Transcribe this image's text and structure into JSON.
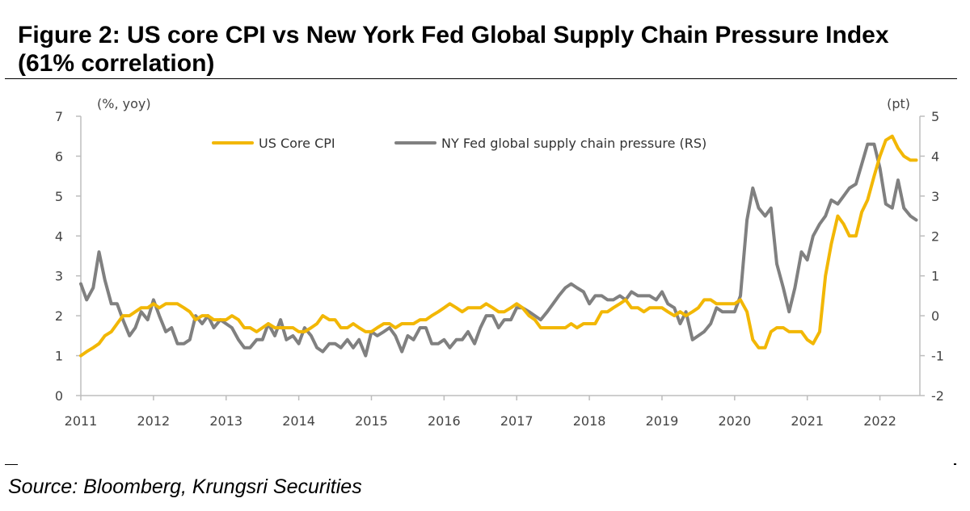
{
  "figure": {
    "title": "Figure 2: US core CPI vs New York Fed Global Supply Chain Pressure Index (61% correlation)",
    "source": "Source: Bloomberg, Krungsri Securities"
  },
  "chart_data": {
    "type": "line",
    "title": "Figure 2: US core CPI vs New York Fed Global Supply Chain Pressure Index (61% correlation)",
    "y_left_unit": "(%, yoy)",
    "y_right_unit": "(pt)",
    "y_left_ticks": [
      0,
      1,
      2,
      3,
      4,
      5,
      6,
      7
    ],
    "y_right_ticks": [
      -2,
      -1,
      0,
      1,
      2,
      3,
      4,
      5
    ],
    "ylim_left": [
      0,
      7
    ],
    "ylim_right": [
      -2,
      5
    ],
    "x_ticks": [
      "2011",
      "2012",
      "2013",
      "2014",
      "2015",
      "2016",
      "2017",
      "2018",
      "2019",
      "2020",
      "2021",
      "2022"
    ],
    "xlim": [
      2011.0,
      2022.55
    ],
    "grid": false,
    "legend_position": "top-center",
    "series": [
      {
        "name": "US Core CPI",
        "axis": "left",
        "color": "#F2B705",
        "points": [
          [
            2011.0,
            1.0
          ],
          [
            2011.08,
            1.1
          ],
          [
            2011.17,
            1.2
          ],
          [
            2011.25,
            1.3
          ],
          [
            2011.33,
            1.5
          ],
          [
            2011.42,
            1.6
          ],
          [
            2011.5,
            1.8
          ],
          [
            2011.58,
            2.0
          ],
          [
            2011.67,
            2.0
          ],
          [
            2011.75,
            2.1
          ],
          [
            2011.83,
            2.2
          ],
          [
            2011.92,
            2.2
          ],
          [
            2012.0,
            2.3
          ],
          [
            2012.08,
            2.2
          ],
          [
            2012.17,
            2.3
          ],
          [
            2012.25,
            2.3
          ],
          [
            2012.33,
            2.3
          ],
          [
            2012.42,
            2.2
          ],
          [
            2012.5,
            2.1
          ],
          [
            2012.58,
            1.9
          ],
          [
            2012.67,
            2.0
          ],
          [
            2012.75,
            2.0
          ],
          [
            2012.83,
            1.9
          ],
          [
            2012.92,
            1.9
          ],
          [
            2013.0,
            1.9
          ],
          [
            2013.08,
            2.0
          ],
          [
            2013.17,
            1.9
          ],
          [
            2013.25,
            1.7
          ],
          [
            2013.33,
            1.7
          ],
          [
            2013.42,
            1.6
          ],
          [
            2013.5,
            1.7
          ],
          [
            2013.58,
            1.8
          ],
          [
            2013.67,
            1.7
          ],
          [
            2013.75,
            1.7
          ],
          [
            2013.83,
            1.7
          ],
          [
            2013.92,
            1.7
          ],
          [
            2014.0,
            1.6
          ],
          [
            2014.08,
            1.6
          ],
          [
            2014.17,
            1.7
          ],
          [
            2014.25,
            1.8
          ],
          [
            2014.33,
            2.0
          ],
          [
            2014.42,
            1.9
          ],
          [
            2014.5,
            1.9
          ],
          [
            2014.58,
            1.7
          ],
          [
            2014.67,
            1.7
          ],
          [
            2014.75,
            1.8
          ],
          [
            2014.83,
            1.7
          ],
          [
            2014.92,
            1.6
          ],
          [
            2015.0,
            1.6
          ],
          [
            2015.08,
            1.7
          ],
          [
            2015.17,
            1.8
          ],
          [
            2015.25,
            1.8
          ],
          [
            2015.33,
            1.7
          ],
          [
            2015.42,
            1.8
          ],
          [
            2015.5,
            1.8
          ],
          [
            2015.58,
            1.8
          ],
          [
            2015.67,
            1.9
          ],
          [
            2015.75,
            1.9
          ],
          [
            2015.83,
            2.0
          ],
          [
            2015.92,
            2.1
          ],
          [
            2016.0,
            2.2
          ],
          [
            2016.08,
            2.3
          ],
          [
            2016.17,
            2.2
          ],
          [
            2016.25,
            2.1
          ],
          [
            2016.33,
            2.2
          ],
          [
            2016.42,
            2.2
          ],
          [
            2016.5,
            2.2
          ],
          [
            2016.58,
            2.3
          ],
          [
            2016.67,
            2.2
          ],
          [
            2016.75,
            2.1
          ],
          [
            2016.83,
            2.1
          ],
          [
            2016.92,
            2.2
          ],
          [
            2017.0,
            2.3
          ],
          [
            2017.08,
            2.2
          ],
          [
            2017.17,
            2.0
          ],
          [
            2017.25,
            1.9
          ],
          [
            2017.33,
            1.7
          ],
          [
            2017.42,
            1.7
          ],
          [
            2017.5,
            1.7
          ],
          [
            2017.58,
            1.7
          ],
          [
            2017.67,
            1.7
          ],
          [
            2017.75,
            1.8
          ],
          [
            2017.83,
            1.7
          ],
          [
            2017.92,
            1.8
          ],
          [
            2018.0,
            1.8
          ],
          [
            2018.08,
            1.8
          ],
          [
            2018.17,
            2.1
          ],
          [
            2018.25,
            2.1
          ],
          [
            2018.33,
            2.2
          ],
          [
            2018.42,
            2.3
          ],
          [
            2018.5,
            2.4
          ],
          [
            2018.58,
            2.2
          ],
          [
            2018.67,
            2.2
          ],
          [
            2018.75,
            2.1
          ],
          [
            2018.83,
            2.2
          ],
          [
            2018.92,
            2.2
          ],
          [
            2019.0,
            2.2
          ],
          [
            2019.08,
            2.1
          ],
          [
            2019.17,
            2.0
          ],
          [
            2019.25,
            2.1
          ],
          [
            2019.33,
            2.0
          ],
          [
            2019.42,
            2.1
          ],
          [
            2019.5,
            2.2
          ],
          [
            2019.58,
            2.4
          ],
          [
            2019.67,
            2.4
          ],
          [
            2019.75,
            2.3
          ],
          [
            2019.83,
            2.3
          ],
          [
            2019.92,
            2.3
          ],
          [
            2020.0,
            2.3
          ],
          [
            2020.08,
            2.4
          ],
          [
            2020.17,
            2.1
          ],
          [
            2020.25,
            1.4
          ],
          [
            2020.33,
            1.2
          ],
          [
            2020.42,
            1.2
          ],
          [
            2020.5,
            1.6
          ],
          [
            2020.58,
            1.7
          ],
          [
            2020.67,
            1.7
          ],
          [
            2020.75,
            1.6
          ],
          [
            2020.83,
            1.6
          ],
          [
            2020.92,
            1.6
          ],
          [
            2021.0,
            1.4
          ],
          [
            2021.08,
            1.3
          ],
          [
            2021.17,
            1.6
          ],
          [
            2021.25,
            3.0
          ],
          [
            2021.33,
            3.8
          ],
          [
            2021.42,
            4.5
          ],
          [
            2021.5,
            4.3
          ],
          [
            2021.58,
            4.0
          ],
          [
            2021.67,
            4.0
          ],
          [
            2021.75,
            4.6
          ],
          [
            2021.83,
            4.9
          ],
          [
            2021.92,
            5.5
          ],
          [
            2022.0,
            6.0
          ],
          [
            2022.08,
            6.4
          ],
          [
            2022.17,
            6.5
          ],
          [
            2022.25,
            6.2
          ],
          [
            2022.33,
            6.0
          ],
          [
            2022.42,
            5.9
          ],
          [
            2022.5,
            5.9
          ]
        ]
      },
      {
        "name": "NY Fed global supply chain pressure (RS)",
        "axis": "right",
        "color": "#808080",
        "points": [
          [
            2011.0,
            0.8
          ],
          [
            2011.08,
            0.4
          ],
          [
            2011.17,
            0.7
          ],
          [
            2011.25,
            1.6
          ],
          [
            2011.33,
            0.9
          ],
          [
            2011.42,
            0.3
          ],
          [
            2011.5,
            0.3
          ],
          [
            2011.58,
            -0.1
          ],
          [
            2011.67,
            -0.5
          ],
          [
            2011.75,
            -0.3
          ],
          [
            2011.83,
            0.1
          ],
          [
            2011.92,
            -0.1
          ],
          [
            2012.0,
            0.4
          ],
          [
            2012.08,
            0.0
          ],
          [
            2012.17,
            -0.4
          ],
          [
            2012.25,
            -0.3
          ],
          [
            2012.33,
            -0.7
          ],
          [
            2012.42,
            -0.7
          ],
          [
            2012.5,
            -0.6
          ],
          [
            2012.58,
            0.0
          ],
          [
            2012.67,
            -0.2
          ],
          [
            2012.75,
            0.0
          ],
          [
            2012.83,
            -0.3
          ],
          [
            2012.92,
            -0.1
          ],
          [
            2013.0,
            -0.2
          ],
          [
            2013.08,
            -0.3
          ],
          [
            2013.17,
            -0.6
          ],
          [
            2013.25,
            -0.8
          ],
          [
            2013.33,
            -0.8
          ],
          [
            2013.42,
            -0.6
          ],
          [
            2013.5,
            -0.6
          ],
          [
            2013.58,
            -0.2
          ],
          [
            2013.67,
            -0.5
          ],
          [
            2013.75,
            -0.1
          ],
          [
            2013.83,
            -0.6
          ],
          [
            2013.92,
            -0.5
          ],
          [
            2014.0,
            -0.7
          ],
          [
            2014.08,
            -0.3
          ],
          [
            2014.17,
            -0.5
          ],
          [
            2014.25,
            -0.8
          ],
          [
            2014.33,
            -0.9
          ],
          [
            2014.42,
            -0.7
          ],
          [
            2014.5,
            -0.7
          ],
          [
            2014.58,
            -0.8
          ],
          [
            2014.67,
            -0.6
          ],
          [
            2014.75,
            -0.8
          ],
          [
            2014.83,
            -0.6
          ],
          [
            2014.92,
            -1.0
          ],
          [
            2015.0,
            -0.4
          ],
          [
            2015.08,
            -0.5
          ],
          [
            2015.17,
            -0.4
          ],
          [
            2015.25,
            -0.3
          ],
          [
            2015.33,
            -0.5
          ],
          [
            2015.42,
            -0.9
          ],
          [
            2015.5,
            -0.5
          ],
          [
            2015.58,
            -0.6
          ],
          [
            2015.67,
            -0.3
          ],
          [
            2015.75,
            -0.3
          ],
          [
            2015.83,
            -0.7
          ],
          [
            2015.92,
            -0.7
          ],
          [
            2016.0,
            -0.6
          ],
          [
            2016.08,
            -0.8
          ],
          [
            2016.17,
            -0.6
          ],
          [
            2016.25,
            -0.6
          ],
          [
            2016.33,
            -0.4
          ],
          [
            2016.42,
            -0.7
          ],
          [
            2016.5,
            -0.3
          ],
          [
            2016.58,
            0.0
          ],
          [
            2016.67,
            0.0
          ],
          [
            2016.75,
            -0.3
          ],
          [
            2016.83,
            -0.1
          ],
          [
            2016.92,
            -0.1
          ],
          [
            2017.0,
            0.2
          ],
          [
            2017.08,
            0.2
          ],
          [
            2017.17,
            0.1
          ],
          [
            2017.25,
            0.0
          ],
          [
            2017.33,
            -0.1
          ],
          [
            2017.42,
            0.1
          ],
          [
            2017.5,
            0.3
          ],
          [
            2017.58,
            0.5
          ],
          [
            2017.67,
            0.7
          ],
          [
            2017.75,
            0.8
          ],
          [
            2017.83,
            0.7
          ],
          [
            2017.92,
            0.6
          ],
          [
            2018.0,
            0.3
          ],
          [
            2018.08,
            0.5
          ],
          [
            2018.17,
            0.5
          ],
          [
            2018.25,
            0.4
          ],
          [
            2018.33,
            0.4
          ],
          [
            2018.42,
            0.5
          ],
          [
            2018.5,
            0.4
          ],
          [
            2018.58,
            0.6
          ],
          [
            2018.67,
            0.5
          ],
          [
            2018.75,
            0.5
          ],
          [
            2018.83,
            0.5
          ],
          [
            2018.92,
            0.4
          ],
          [
            2019.0,
            0.6
          ],
          [
            2019.08,
            0.3
          ],
          [
            2019.17,
            0.2
          ],
          [
            2019.25,
            -0.2
          ],
          [
            2019.33,
            0.1
          ],
          [
            2019.42,
            -0.6
          ],
          [
            2019.5,
            -0.5
          ],
          [
            2019.58,
            -0.4
          ],
          [
            2019.67,
            -0.2
          ],
          [
            2019.75,
            0.2
          ],
          [
            2019.83,
            0.1
          ],
          [
            2019.92,
            0.1
          ],
          [
            2020.0,
            0.1
          ],
          [
            2020.08,
            0.5
          ],
          [
            2020.17,
            2.4
          ],
          [
            2020.25,
            3.2
          ],
          [
            2020.33,
            2.7
          ],
          [
            2020.42,
            2.5
          ],
          [
            2020.5,
            2.7
          ],
          [
            2020.58,
            1.3
          ],
          [
            2020.67,
            0.7
          ],
          [
            2020.75,
            0.1
          ],
          [
            2020.83,
            0.7
          ],
          [
            2020.92,
            1.6
          ],
          [
            2021.0,
            1.4
          ],
          [
            2021.08,
            2.0
          ],
          [
            2021.17,
            2.3
          ],
          [
            2021.25,
            2.5
          ],
          [
            2021.33,
            2.9
          ],
          [
            2021.42,
            2.8
          ],
          [
            2021.5,
            3.0
          ],
          [
            2021.58,
            3.2
          ],
          [
            2021.67,
            3.3
          ],
          [
            2021.75,
            3.8
          ],
          [
            2021.83,
            4.3
          ],
          [
            2021.92,
            4.3
          ],
          [
            2022.0,
            3.7
          ],
          [
            2022.08,
            2.8
          ],
          [
            2022.17,
            2.7
          ],
          [
            2022.25,
            3.4
          ],
          [
            2022.33,
            2.7
          ],
          [
            2022.42,
            2.5
          ],
          [
            2022.5,
            2.4
          ]
        ]
      }
    ]
  }
}
